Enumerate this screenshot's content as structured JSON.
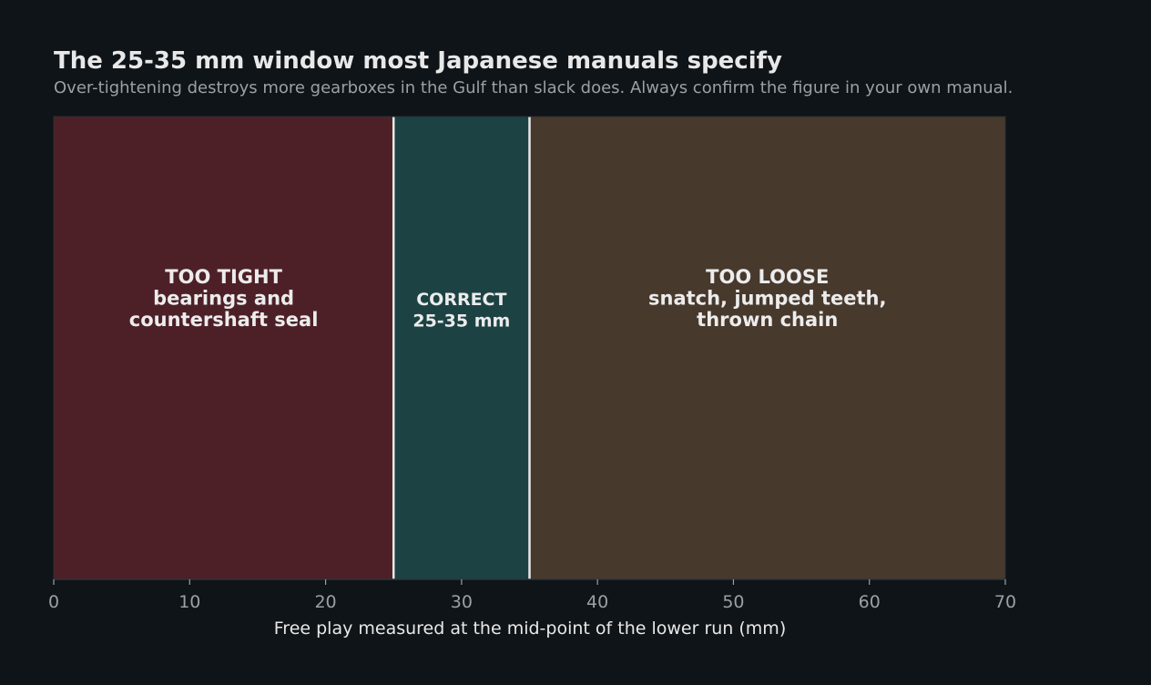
{
  "chart_data": {
    "type": "bar",
    "orientation": "horizontal-bands",
    "title": "The 25-35 mm window most Japanese manuals specify",
    "subtitle": "Over-tightening destroys more gearboxes in the Gulf than slack does. Always confirm the figure in your own manual.",
    "xlabel": "Free play measured at the mid-point of the lower run (mm)",
    "ylabel": "",
    "xlim": [
      0,
      70
    ],
    "xticks": [
      0,
      10,
      20,
      30,
      40,
      50,
      60,
      70
    ],
    "grid": false,
    "zones": [
      {
        "start": 0,
        "end": 25,
        "color": "#4d2027",
        "lines": [
          "TOO TIGHT",
          "bearings and",
          "countershaft seal"
        ],
        "emphasis": "large"
      },
      {
        "start": 25,
        "end": 35,
        "color": "#1c4244",
        "lines": [
          "CORRECT",
          "25-35 mm"
        ],
        "emphasis": "small"
      },
      {
        "start": 35,
        "end": 70,
        "color": "#48392d",
        "lines": [
          "TOO LOOSE",
          "snatch, jumped teeth,",
          "thrown chain"
        ],
        "emphasis": "large"
      }
    ],
    "boundaries": [
      25,
      35
    ],
    "boundary_color": "#e8e8e8",
    "axis_color": "#3a4046",
    "tick_color": "#9aa0a6"
  }
}
